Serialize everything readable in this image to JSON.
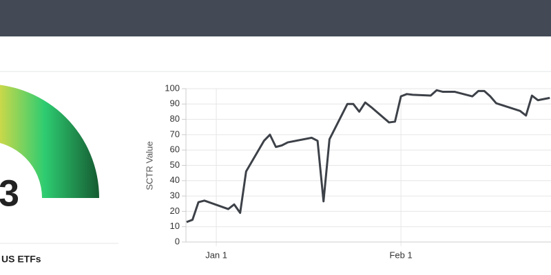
{
  "gauge": {
    "value_text": "3",
    "caption": "US ETFs"
  },
  "chart_data": {
    "type": "line",
    "y_label": "SCTR Value",
    "x": [
      -5,
      -4,
      -3,
      -2,
      2,
      3,
      4,
      5,
      8,
      9,
      10,
      11,
      12,
      16,
      17,
      18,
      19,
      22,
      23,
      24,
      25,
      26,
      29,
      30,
      31,
      32,
      33,
      36,
      37,
      38,
      40,
      43,
      44,
      45,
      46,
      47,
      51,
      52,
      53,
      54,
      56
    ],
    "values": [
      13,
      14.5,
      26,
      27,
      21.5,
      24.5,
      19,
      46,
      66,
      70,
      62,
      63,
      65,
      68,
      66,
      26.5,
      67,
      90,
      90,
      85,
      91,
      88,
      78,
      78.5,
      95,
      96.5,
      96,
      95.5,
      99,
      98,
      98,
      95,
      98.5,
      98.5,
      95,
      90.5,
      85.5,
      82.5,
      95.5,
      92.5,
      94
    ],
    "color": "#3d4148",
    "xlim": [
      -5.1,
      56.2
    ],
    "xticks": [
      {
        "value": 0,
        "label": "Jan 1"
      },
      {
        "value": 31,
        "label": "Feb 1"
      }
    ],
    "ylim": [
      0,
      100
    ],
    "yticks": [
      0,
      10,
      20,
      30,
      40,
      50,
      60,
      70,
      80,
      90,
      100
    ],
    "grid": true
  }
}
